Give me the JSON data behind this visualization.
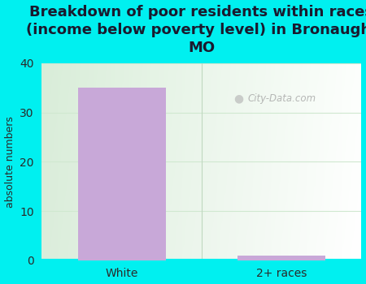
{
  "categories": [
    "White",
    "2+ races"
  ],
  "values": [
    35,
    1
  ],
  "bar_color": "#c8a8d8",
  "title": "Breakdown of poor residents within races\n(income below poverty level) in Bronaugh,\nMO",
  "ylabel": "absolute numbers",
  "ylim": [
    0,
    40
  ],
  "yticks": [
    0,
    10,
    20,
    30,
    40
  ],
  "bg_color": "#00f0f0",
  "plot_bg_left": "#d8ecd0",
  "plot_bg_right": "#f0f8f0",
  "title_fontsize": 13,
  "title_color": "#1a1a2e",
  "watermark": "City-Data.com",
  "grid_color": "#d0e8d0",
  "bar_width": 0.55
}
